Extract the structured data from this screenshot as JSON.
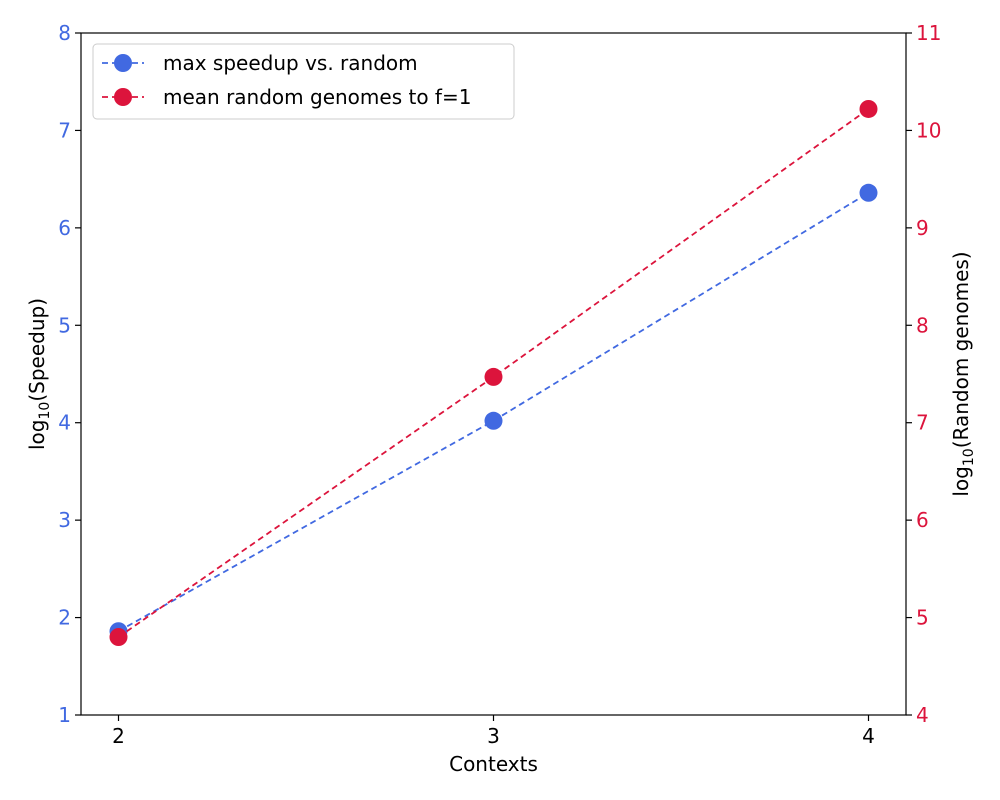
{
  "chart_data": {
    "type": "line",
    "x": [
      2,
      3,
      4
    ],
    "xlabel": "Contexts",
    "xticks": [
      "2",
      "3",
      "4"
    ],
    "xlim": [
      1.9,
      4.1
    ],
    "ylabel_left": "log10(Speedup)",
    "ylabel_right": "log10(Random genomes)",
    "ylim_left": [
      1,
      8
    ],
    "ylim_right": [
      4,
      11
    ],
    "yticks_left": [
      "1",
      "2",
      "3",
      "4",
      "5",
      "6",
      "7",
      "8"
    ],
    "yticks_right": [
      "4",
      "5",
      "6",
      "7",
      "8",
      "9",
      "10",
      "11"
    ],
    "legend_position": "upper-left",
    "grid": false,
    "series": [
      {
        "name": "max speedup vs. random",
        "axis": "left",
        "color": "#4169e1",
        "linestyle": "dashed",
        "marker": "circle",
        "values": [
          1.86,
          4.02,
          6.36
        ]
      },
      {
        "name": "mean random genomes to f=1",
        "axis": "right",
        "color": "#dc143c",
        "linestyle": "dashed",
        "marker": "circle",
        "values": [
          4.8,
          7.47,
          10.22
        ]
      }
    ]
  }
}
